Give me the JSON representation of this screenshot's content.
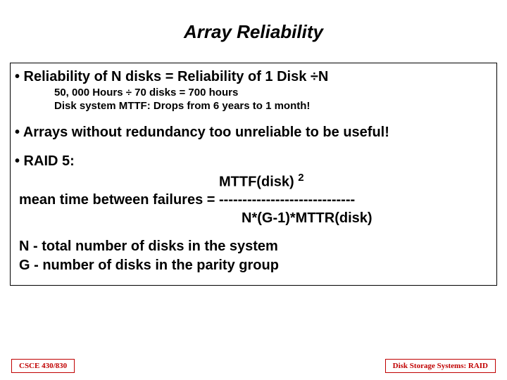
{
  "title": {
    "text": "Array Reliability",
    "fontsize": 26,
    "color": "#000000"
  },
  "content": {
    "border_color": "#000000",
    "bullet1": {
      "text": "• Reliability of N disks = Reliability of 1 Disk ÷N",
      "fontsize": 20,
      "sub1": {
        "text": "50, 000 Hours ÷ 70 disks = 700 hours",
        "fontsize": 15
      },
      "sub2": {
        "text": "Disk system MTTF: Drops from 6 years  to 1 month!",
        "fontsize": 15
      }
    },
    "bullet2": {
      "text": "• Arrays without redundancy too unreliable to be useful!",
      "fontsize": 20
    },
    "bullet3": {
      "text": "• RAID 5:",
      "fontsize": 20
    },
    "formula": {
      "fontsize": 20,
      "row1_left": "MTTF(disk) ",
      "row1_exp": "2",
      "row2": "mean time between failures = -----------------------------",
      "row3": "N*(G-1)*MTTR(disk)"
    },
    "legend": {
      "fontsize": 20,
      "l1": "N - total number of disks in the system",
      "l2": "G - number of disks in the parity group"
    }
  },
  "footer": {
    "left": {
      "text": "CSCE 430/830",
      "fontsize": 11,
      "color": "#c00000",
      "border_color": "#c00000"
    },
    "right": {
      "text": "Disk Storage Systems: RAID",
      "fontsize": 11,
      "color": "#c00000",
      "border_color": "#c00000"
    }
  }
}
